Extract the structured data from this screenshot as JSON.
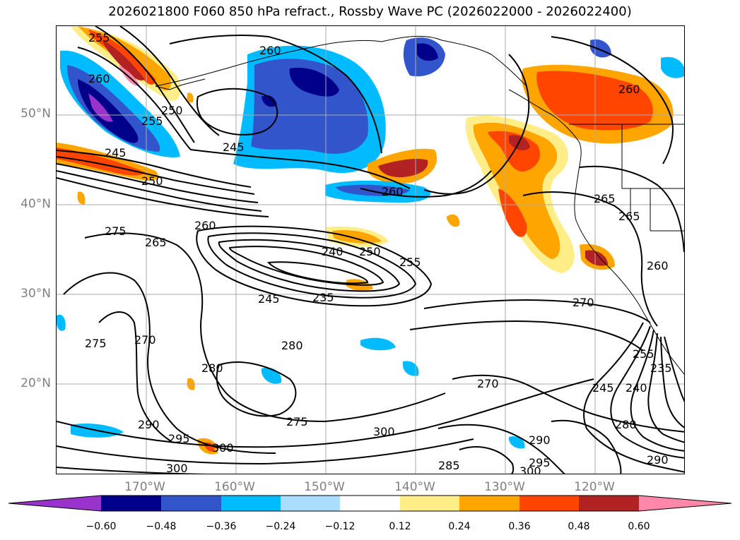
{
  "title": "2026021800 F060 850 hPa refract., Rossby Wave PC (2026022000 - 2026022400)",
  "map": {
    "lat_labels": [
      "50°N",
      "40°N",
      "30°N",
      "20°N"
    ],
    "lon_labels": [
      "170°W",
      "160°W",
      "150°W",
      "140°W",
      "130°W",
      "120°W"
    ],
    "contour_labels": [
      "255",
      "260",
      "245",
      "260",
      "250",
      "245",
      "250",
      "260",
      "260",
      "275",
      "265",
      "240",
      "250",
      "255",
      "245",
      "235",
      "270",
      "265",
      "260",
      "270",
      "280",
      "275",
      "280",
      "290",
      "295",
      "300",
      "275",
      "300",
      "285",
      "290",
      "295",
      "300",
      "255",
      "245",
      "240",
      "235",
      "280",
      "290",
      "300",
      "270",
      "260",
      "265",
      "255"
    ]
  },
  "colorbar": {
    "ticks": [
      "−0.60",
      "−0.48",
      "−0.36",
      "−0.24",
      "−0.12",
      "0.12",
      "0.24",
      "0.36",
      "0.48",
      "0.60"
    ],
    "colors": [
      "#9933cc",
      "#00008b",
      "#3355cc",
      "#00bbff",
      "#aaddff",
      "#ffffff",
      "#ffee88",
      "#ffa500",
      "#ff4500",
      "#b22222",
      "#ff88aa"
    ]
  }
}
